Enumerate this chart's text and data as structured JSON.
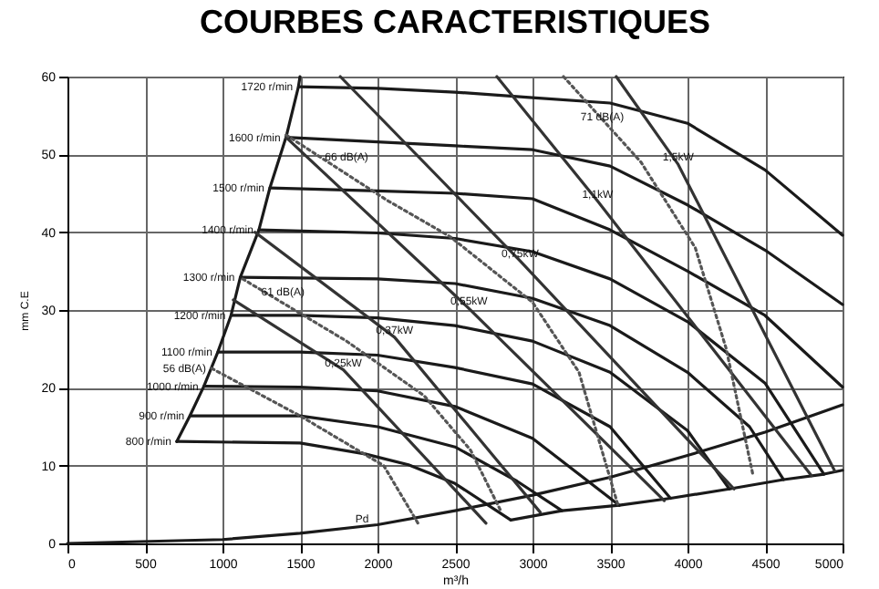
{
  "chart_data": {
    "type": "line",
    "title": "COURBES CARACTERISTIQUES",
    "xlabel": "m³/h",
    "ylabel": "mm C.E",
    "xlim": [
      0,
      5000
    ],
    "xticks": [
      0,
      500,
      1000,
      1500,
      2000,
      2500,
      3000,
      3500,
      4000,
      4500,
      5000
    ],
    "ylim": [
      0,
      60
    ],
    "yticks": [
      0,
      10,
      20,
      30,
      40,
      50,
      60
    ],
    "grid": true,
    "marker": "none",
    "series": [
      {
        "color": "#1a1a1a",
        "x": [
          1490,
          2000,
          2500,
          3000,
          3500,
          4000,
          4500,
          5000
        ],
        "values": [
          58.7,
          58.5,
          58,
          57.3,
          56.6,
          54,
          48,
          39.6
        ]
      },
      {
        "color": "#1a1a1a",
        "x": [
          1410,
          2000,
          2500,
          3000,
          3500,
          4000,
          4500,
          5000
        ],
        "values": [
          52.2,
          51.6,
          51.1,
          50.6,
          48.5,
          43.5,
          37.7,
          30.7
        ]
      },
      {
        "color": "#1a1a1a",
        "x": [
          1306,
          2000,
          2500,
          3000,
          3500,
          4000,
          4500,
          5000
        ],
        "values": [
          45.7,
          45.3,
          45,
          44.3,
          40.3,
          35,
          29.3,
          20.1
        ]
      },
      {
        "color": "#1a1a1a",
        "x": [
          1235,
          2000,
          2500,
          3000,
          3500,
          4000,
          4500,
          4880
        ],
        "values": [
          40.3,
          39.9,
          39.2,
          37.5,
          34,
          28.5,
          20.6,
          8.9
        ]
      },
      {
        "color": "#1a1a1a",
        "x": [
          1115,
          2000,
          2500,
          3000,
          3500,
          4000,
          4400,
          4620
        ],
        "values": [
          34.2,
          34,
          33.4,
          31.5,
          28,
          22,
          15,
          8.2
        ]
      },
      {
        "color": "#1a1a1a",
        "x": [
          1055,
          1500,
          2000,
          2500,
          3000,
          3500,
          4000,
          4270
        ],
        "values": [
          29.3,
          29.3,
          29,
          28,
          26,
          22,
          14.5,
          7
        ]
      },
      {
        "color": "#1a1a1a",
        "x": [
          970,
          1500,
          2000,
          2500,
          3000,
          3500,
          3890
        ],
        "values": [
          24.6,
          24.6,
          24.2,
          22.6,
          20.5,
          15,
          5.8
        ]
      },
      {
        "color": "#1a1a1a",
        "x": [
          880,
          1500,
          2000,
          2500,
          3000,
          3560
        ],
        "values": [
          20.2,
          20.1,
          19.6,
          17.6,
          13.5,
          4.9
        ]
      },
      {
        "color": "#1a1a1a",
        "x": [
          790,
          1500,
          2000,
          2500,
          2900,
          3190
        ],
        "values": [
          16.4,
          16.4,
          15,
          12.4,
          8,
          4.2
        ]
      },
      {
        "color": "#1a1a1a",
        "x": [
          705,
          1500,
          1920,
          2200,
          2500,
          2860
        ],
        "values": [
          13.1,
          12.9,
          11.5,
          10.1,
          7.7,
          3
        ]
      },
      {
        "color": "#1a1a1a",
        "x": [
          705,
          790,
          880,
          970,
          1055,
          1115,
          1235,
          1306,
          1410,
          1490,
          1500
        ],
        "values": [
          13.1,
          16.4,
          20.2,
          24.6,
          29.3,
          34.2,
          40.3,
          45.7,
          52.2,
          58.7,
          60
        ]
      },
      {
        "color": "#1a1a1a",
        "x": [
          2860,
          3190,
          3560,
          3890,
          4270,
          4620,
          4880,
          5000
        ],
        "values": [
          3,
          4.2,
          4.9,
          5.8,
          7,
          8.2,
          8.9,
          9.4
        ]
      },
      {
        "color": "#1a1a1a",
        "x": [
          0,
          1000,
          1500,
          2000,
          2500,
          3000,
          3500,
          4000,
          4500,
          5000
        ],
        "values": [
          0,
          0.5,
          1.3,
          2.4,
          4.2,
          6.2,
          8.5,
          11.3,
          14.3,
          17.8
        ]
      },
      {
        "color": "#333333",
        "x": [
          1070,
          1780,
          2700
        ],
        "values": [
          31.3,
          22.3,
          2.6
        ]
      },
      {
        "color": "#333333",
        "x": [
          1210,
          2110,
          3050
        ],
        "values": [
          40,
          26.5,
          4
        ]
      },
      {
        "color": "#333333",
        "x": [
          1410,
          2590,
          3850
        ],
        "values": [
          52.2,
          30.2,
          5.5
        ]
      },
      {
        "color": "#333333",
        "x": [
          1760,
          2920,
          4300
        ],
        "values": [
          60,
          36.3,
          7
        ]
      },
      {
        "color": "#333333",
        "x": [
          2770,
          3420,
          4800
        ],
        "values": [
          60,
          44,
          8.7
        ]
      },
      {
        "color": "#333333",
        "x": [
          3540,
          3940,
          4950
        ],
        "values": [
          60,
          48.7,
          9.3
        ]
      },
      {
        "color": "#555555",
        "line_style": "dotted",
        "x": [
          930,
          1500,
          2040,
          2270
        ],
        "values": [
          22.5,
          16.4,
          10,
          2.3
        ]
      },
      {
        "color": "#555555",
        "line_style": "dotted",
        "x": [
          1130,
          1800,
          2300,
          2600,
          2800
        ],
        "values": [
          34,
          26,
          19,
          12,
          4
        ]
      },
      {
        "color": "#555555",
        "line_style": "dotted",
        "x": [
          1410,
          2070,
          2470,
          3000,
          3300,
          3550
        ],
        "values": [
          52.5,
          44,
          39.4,
          31,
          22,
          5
        ]
      },
      {
        "color": "#555555",
        "line_style": "dotted",
        "x": [
          3200,
          3700,
          4050,
          4250,
          4420
        ],
        "values": [
          60,
          49,
          38,
          25,
          9
        ]
      }
    ],
    "annotations": [
      {
        "text": "1720 r/min",
        "x": 1490,
        "y": 58.7
      },
      {
        "text": "1600 r/min",
        "x": 1410,
        "y": 52.2
      },
      {
        "text": "1500 r/min",
        "x": 1306,
        "y": 45.7
      },
      {
        "text": "1400 r/min",
        "x": 1235,
        "y": 40.3
      },
      {
        "text": "1300 r/min",
        "x": 1115,
        "y": 34.2
      },
      {
        "text": "1200 r/min",
        "x": 1055,
        "y": 29.3
      },
      {
        "text": "1100 r/min",
        "x": 970,
        "y": 24.6
      },
      {
        "text": "1000 r/min",
        "x": 880,
        "y": 20.2
      },
      {
        "text": "900 r/min",
        "x": 790,
        "y": 16.4
      },
      {
        "text": "800 r/min",
        "x": 705,
        "y": 13.1
      },
      {
        "text": "Pd",
        "x": 1900,
        "y": 2.2
      },
      {
        "text": "0,25kW",
        "x": 1780,
        "y": 22.3
      },
      {
        "text": "0,37kW",
        "x": 2110,
        "y": 26.5
      },
      {
        "text": "0,55kW",
        "x": 2590,
        "y": 30.2
      },
      {
        "text": "0,75kW",
        "x": 2920,
        "y": 36.3
      },
      {
        "text": "1,1kW",
        "x": 3420,
        "y": 44
      },
      {
        "text": "1,5kW",
        "x": 3940,
        "y": 48.7
      },
      {
        "text": "56 dB(A)",
        "x": 930,
        "y": 22.5
      },
      {
        "text": "61 dB(A)",
        "x": 1390,
        "y": 31.4
      },
      {
        "text": "66 dB(A)",
        "x": 1800,
        "y": 48.7
      },
      {
        "text": "71 dB(A)",
        "x": 3450,
        "y": 53.9
      }
    ]
  }
}
